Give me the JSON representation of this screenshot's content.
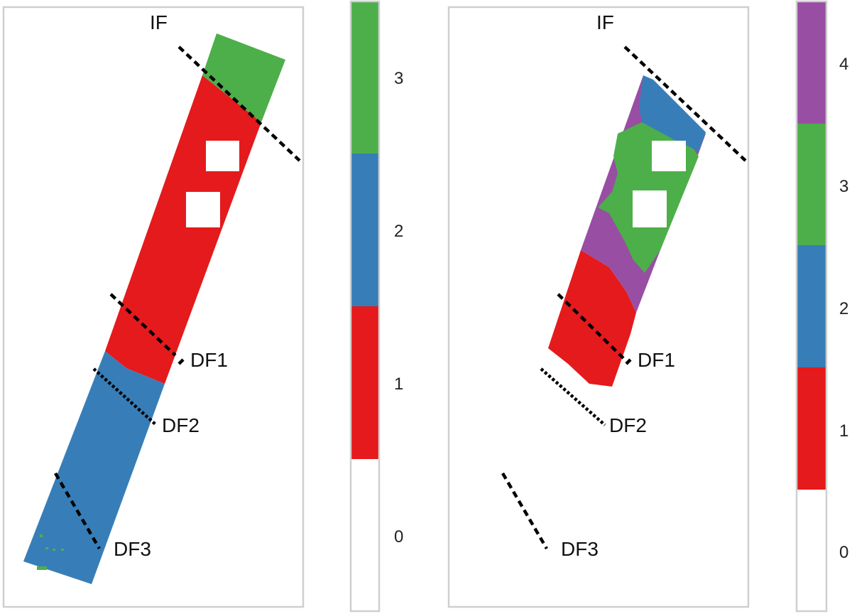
{
  "colors": {
    "red": "#e41a1c",
    "blue": "#377eb8",
    "green": "#4daf4a",
    "purple": "#984ea3",
    "hole": "#ffffff"
  },
  "left_panel": {
    "top_label": "IF",
    "fault_labels": [
      "DF1",
      "DF2",
      "DF3"
    ],
    "colorbar": {
      "ticks": [
        "0",
        "1",
        "2",
        "3"
      ],
      "colors": [
        "#ffffff",
        "#e41a1c",
        "#377eb8",
        "#4daf4a"
      ]
    }
  },
  "right_panel": {
    "top_label": "IF",
    "fault_labels": [
      "DF1",
      "DF2",
      "DF3"
    ],
    "colorbar": {
      "ticks": [
        "0",
        "1",
        "2",
        "3",
        "4"
      ],
      "colors": [
        "#ffffff",
        "#e41a1c",
        "#377eb8",
        "#4daf4a",
        "#984ea3"
      ]
    }
  }
}
